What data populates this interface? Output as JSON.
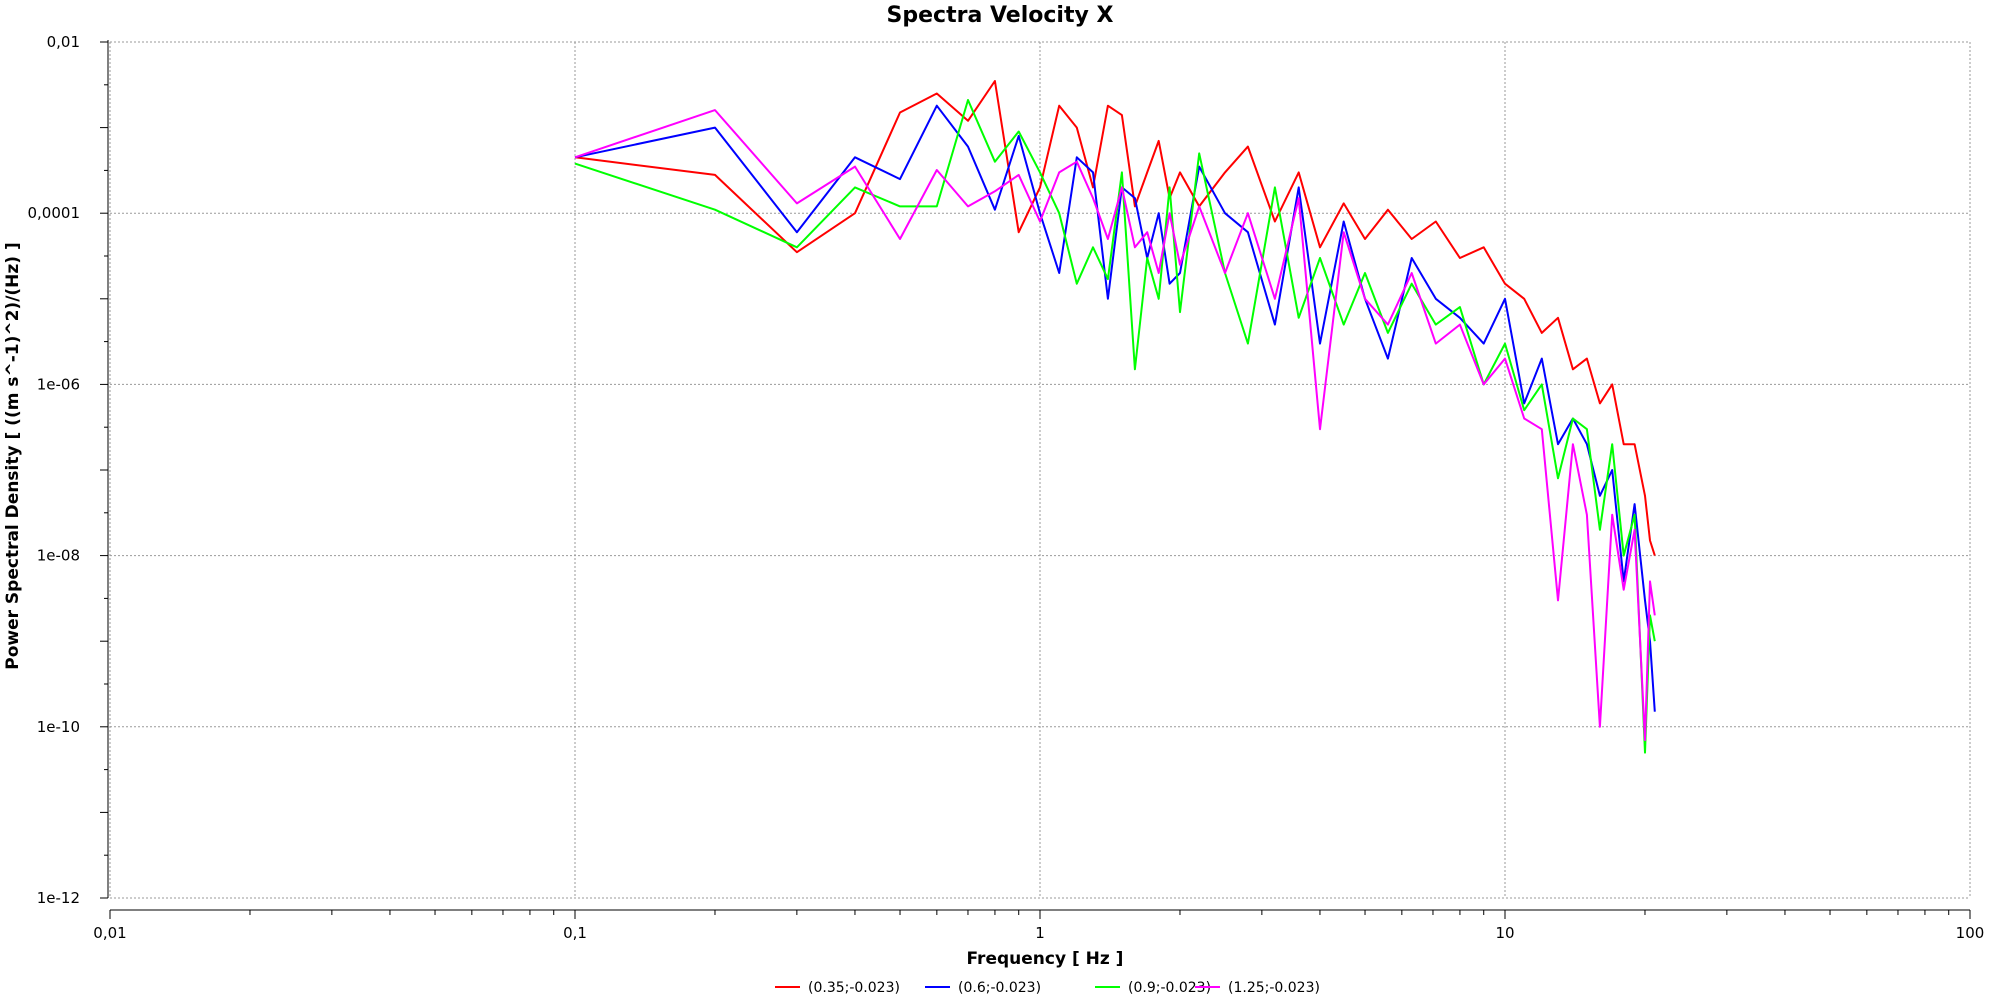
{
  "chart_data": {
    "type": "line",
    "title": "Spectra Velocity X",
    "xlabel": "Frequency [ Hz ]",
    "ylabel": "Power Spectral Density [ ((m s^-1)^2)/(Hz) ]",
    "x_scale": "log",
    "y_scale": "log",
    "xlim": [
      0.01,
      100
    ],
    "ylim": [
      1e-12,
      0.01
    ],
    "x_ticks": [
      {
        "value": 0.01,
        "label": "0,01"
      },
      {
        "value": 0.1,
        "label": "0,1"
      },
      {
        "value": 1,
        "label": "1"
      },
      {
        "value": 10,
        "label": "10"
      },
      {
        "value": 100,
        "label": "100"
      }
    ],
    "y_ticks": [
      {
        "value": 0.01,
        "label": "0,01"
      },
      {
        "value": 0.0001,
        "label": "0,0001"
      },
      {
        "value": 1e-06,
        "label": "1e-06"
      },
      {
        "value": 1e-08,
        "label": "1e-08"
      },
      {
        "value": 1e-10,
        "label": "1e-10"
      },
      {
        "value": 1e-12,
        "label": "1e-12"
      }
    ],
    "grid": true,
    "legend_position": "bottom-center",
    "series": [
      {
        "name": "(0.35;-0.023)",
        "color": "#ff0000",
        "x": [
          0.1,
          0.2,
          0.3,
          0.4,
          0.5,
          0.6,
          0.7,
          0.8,
          0.9,
          1.0,
          1.1,
          1.2,
          1.3,
          1.4,
          1.5,
          1.6,
          1.7,
          1.8,
          1.9,
          2.0,
          2.2,
          2.5,
          2.8,
          3.2,
          3.6,
          4.0,
          4.5,
          5.0,
          5.6,
          6.3,
          7.1,
          8.0,
          9.0,
          10,
          11,
          12,
          13,
          14,
          15,
          16,
          17,
          18,
          19,
          20,
          20.5,
          21
        ],
        "y": [
          0.00045,
          0.00028,
          3.5e-05,
          0.0001,
          0.0015,
          0.0025,
          0.0012,
          0.0035,
          6e-05,
          0.0002,
          0.0018,
          0.001,
          0.0002,
          0.0018,
          0.0014,
          0.00012,
          0.0003,
          0.0007,
          0.00015,
          0.0003,
          0.00012,
          0.0003,
          0.0006,
          8e-05,
          0.0003,
          4e-05,
          0.00013,
          5e-05,
          0.00011,
          5e-05,
          8e-05,
          3e-05,
          4e-05,
          1.5e-05,
          1e-05,
          4e-06,
          6e-06,
          1.5e-06,
          2e-06,
          6e-07,
          1e-06,
          2e-07,
          2e-07,
          5e-08,
          1.5e-08,
          1e-08
        ]
      },
      {
        "name": "(0.6;-0.023)",
        "color": "#0000ff",
        "x": [
          0.1,
          0.2,
          0.3,
          0.4,
          0.5,
          0.6,
          0.7,
          0.8,
          0.9,
          1.0,
          1.1,
          1.2,
          1.3,
          1.4,
          1.5,
          1.6,
          1.7,
          1.8,
          1.9,
          2.0,
          2.2,
          2.5,
          2.8,
          3.2,
          3.6,
          4.0,
          4.5,
          5.0,
          5.6,
          6.3,
          7.1,
          8.0,
          9.0,
          10,
          11,
          12,
          13,
          14,
          15,
          16,
          17,
          18,
          19,
          20,
          20.5,
          21
        ],
        "y": [
          0.00045,
          0.001,
          6e-05,
          0.00045,
          0.00025,
          0.0018,
          0.0006,
          0.00011,
          0.0008,
          0.0001,
          2e-05,
          0.00045,
          0.0003,
          1e-05,
          0.0002,
          0.00015,
          3e-05,
          0.0001,
          1.5e-05,
          2e-05,
          0.00035,
          0.0001,
          6e-05,
          5e-06,
          0.0002,
          3e-06,
          8e-05,
          1e-05,
          2e-06,
          3e-05,
          1e-05,
          6e-06,
          3e-06,
          1e-05,
          6e-07,
          2e-06,
          2e-07,
          4e-07,
          2e-07,
          5e-08,
          1e-07,
          5e-09,
          4e-08,
          3e-09,
          1e-09,
          1.5e-10
        ]
      },
      {
        "name": "(0.9;-0.023)",
        "color": "#00ff00",
        "x": [
          0.1,
          0.2,
          0.3,
          0.4,
          0.5,
          0.6,
          0.7,
          0.8,
          0.9,
          1.0,
          1.1,
          1.2,
          1.3,
          1.4,
          1.5,
          1.6,
          1.7,
          1.8,
          1.9,
          2.0,
          2.2,
          2.5,
          2.8,
          3.2,
          3.6,
          4.0,
          4.5,
          5.0,
          5.6,
          6.3,
          7.1,
          8.0,
          9.0,
          10,
          11,
          12,
          13,
          14,
          15,
          16,
          17,
          18,
          19,
          20,
          20.5,
          21
        ],
        "y": [
          0.00038,
          0.00011,
          4e-05,
          0.0002,
          0.00012,
          0.00012,
          0.0021,
          0.0004,
          0.0009,
          0.0003,
          0.0001,
          1.5e-05,
          4e-05,
          1.7e-05,
          0.0003,
          1.5e-06,
          3e-05,
          1e-05,
          0.0002,
          7e-06,
          0.0005,
          2e-05,
          3e-06,
          0.0002,
          6e-06,
          3e-05,
          5e-06,
          2e-05,
          4e-06,
          1.5e-05,
          5e-06,
          8e-06,
          1e-06,
          3e-06,
          5e-07,
          1e-06,
          8e-08,
          4e-07,
          3e-07,
          2e-08,
          2e-07,
          1e-08,
          3e-08,
          5e-11,
          2e-09,
          1e-09
        ]
      },
      {
        "name": "(1.25;-0.023)",
        "color": "#ff00ff",
        "x": [
          0.1,
          0.2,
          0.3,
          0.4,
          0.5,
          0.6,
          0.7,
          0.8,
          0.9,
          1.0,
          1.1,
          1.2,
          1.3,
          1.4,
          1.5,
          1.6,
          1.7,
          1.8,
          1.9,
          2.0,
          2.2,
          2.5,
          2.8,
          3.2,
          3.6,
          4.0,
          4.5,
          5.0,
          5.6,
          6.3,
          7.1,
          8.0,
          9.0,
          10,
          11,
          12,
          13,
          14,
          15,
          16,
          17,
          18,
          19,
          20,
          20.5,
          21
        ],
        "y": [
          0.00045,
          0.0016,
          0.00013,
          0.00035,
          5e-05,
          0.00032,
          0.00012,
          0.00018,
          0.00028,
          8e-05,
          0.0003,
          0.0004,
          0.00015,
          5e-05,
          0.0002,
          4e-05,
          6e-05,
          2e-05,
          0.0001,
          2.5e-05,
          0.00012,
          2e-05,
          0.0001,
          1e-05,
          0.00015,
          3e-07,
          6e-05,
          1e-05,
          5e-06,
          2e-05,
          3e-06,
          5e-06,
          1e-06,
          2e-06,
          4e-07,
          3e-07,
          3e-09,
          2e-07,
          3e-08,
          1e-10,
          3e-08,
          4e-09,
          2e-08,
          7e-11,
          5e-09,
          2e-09
        ]
      }
    ]
  }
}
